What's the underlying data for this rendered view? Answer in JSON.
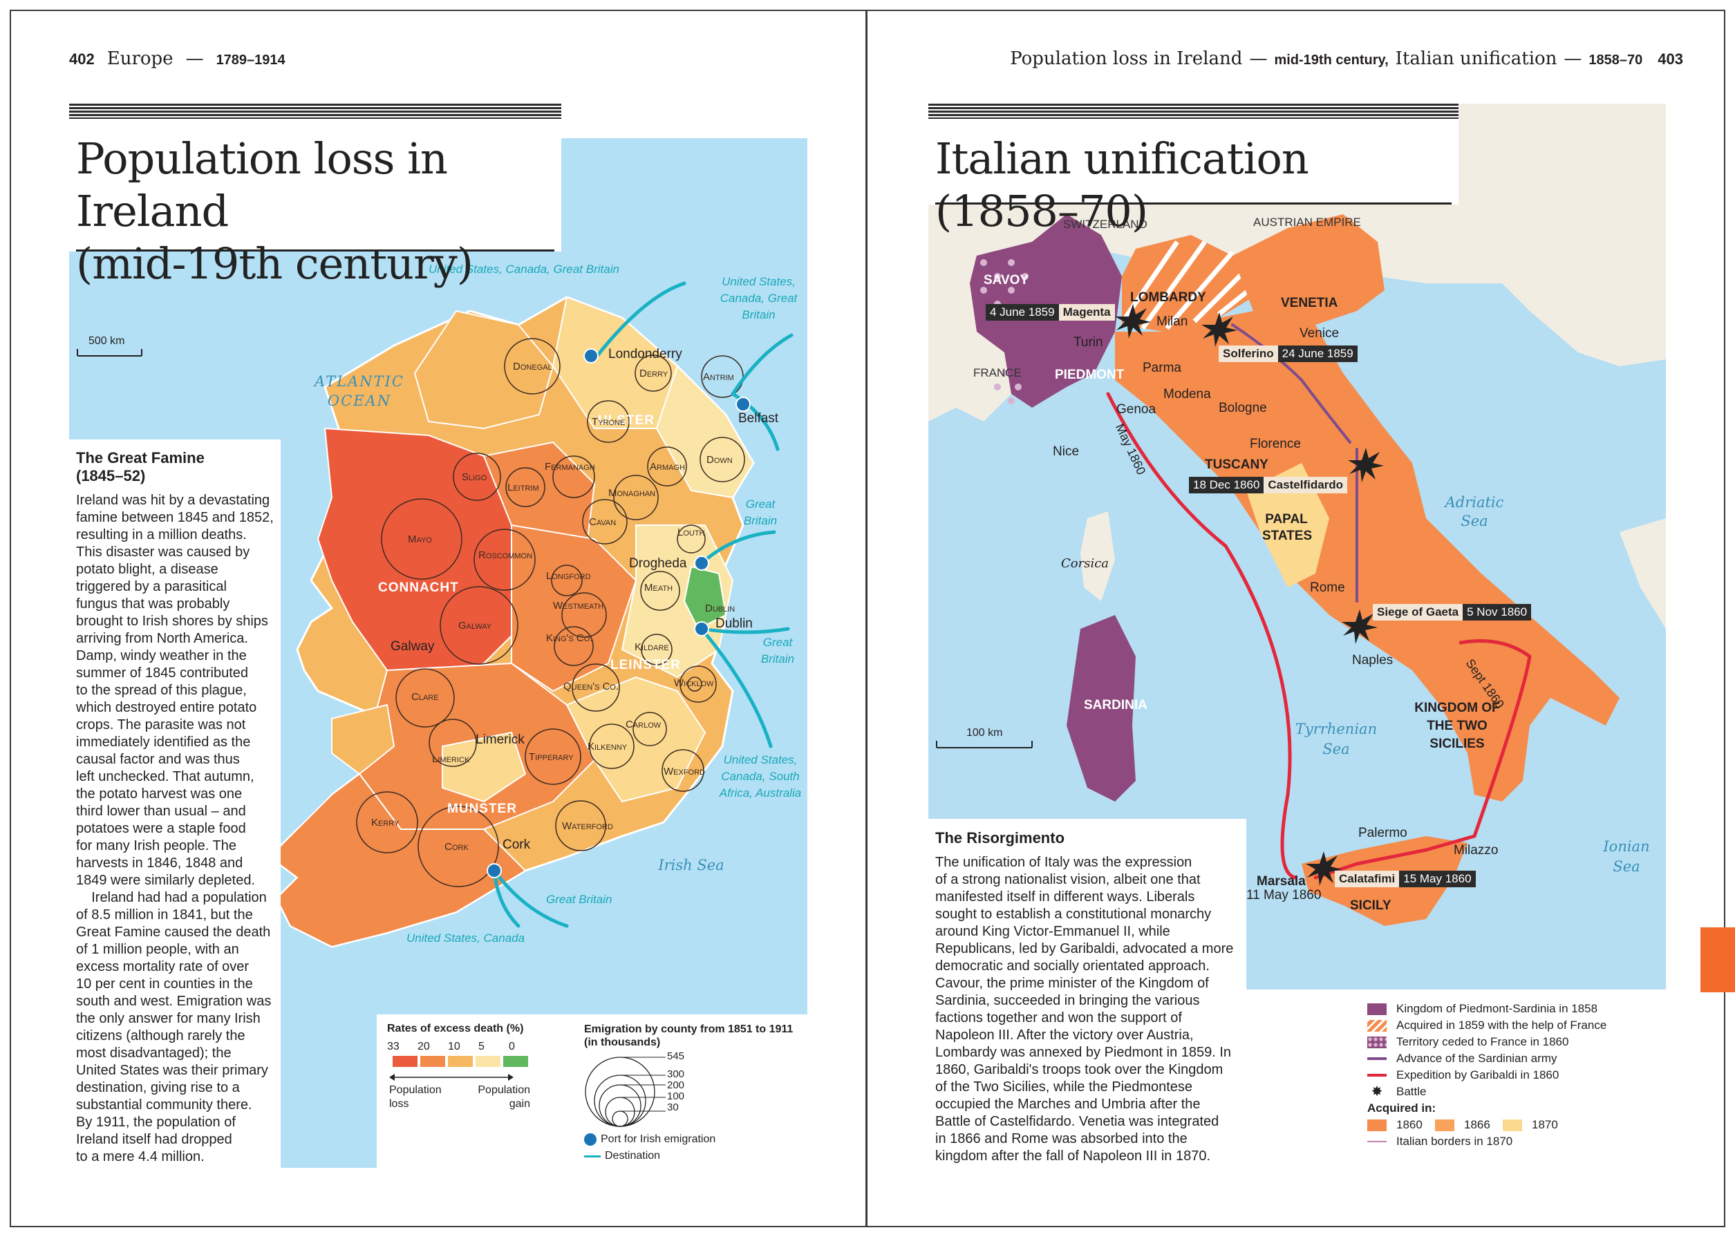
{
  "left_page": {
    "folio": "402",
    "running_head": "Europe",
    "running_head_dates": "1789–1914",
    "title_line1": "Population loss in Ireland",
    "title_line2": "(mid-19th century)",
    "scale": "500 km",
    "atlantic": "ATLANTIC",
    "ocean": "OCEAN",
    "irish_sea": "Irish Sea",
    "provinces": [
      "ULSTER",
      "CONNACHT",
      "LEINSTER",
      "MUNSTER"
    ],
    "counties": [
      "Donegal",
      "Derry",
      "Antrim",
      "Tyrone",
      "Fermanagh",
      "Armagh",
      "Down",
      "Sligo",
      "Leitrim",
      "Monaghan",
      "Cavan",
      "Mayo",
      "Roscommon",
      "Louth",
      "Longford",
      "Meath",
      "Westmeath",
      "Dublin",
      "Galway",
      "King's Co.",
      "Kildare",
      "Wicklow",
      "Queen's Co.",
      "Clare",
      "Carlow",
      "Limerick",
      "Tipperary",
      "Kilkenny",
      "Wexford",
      "Kerry",
      "Cork",
      "Waterford"
    ],
    "towns": {
      "londonderry": "Londonderry",
      "belfast": "Belfast",
      "drogheda": "Drogheda",
      "dublin": "Dublin",
      "galway": "Galway",
      "limerick": "Limerick",
      "cork": "Cork"
    },
    "destinations": {
      "northwest": "United States, Canada, Great Britain",
      "northeast": "United States, Canada, Great Britain",
      "east1": "Great Britain",
      "east2": "Great Britain",
      "southeast": "United States, Canada, South Africa, Australia",
      "south_gb": "Great Britain",
      "south_us": "United States, Canada"
    },
    "famine_head": "The Great Famine (1845–52)",
    "famine_text": [
      "Ireland was hit by a devastating",
      "famine between 1845 and 1852,",
      "resulting in a million deaths.",
      "This disaster was caused by",
      "potato blight, a disease",
      "triggered by a parasitical",
      "fungus that was probably",
      "brought to Irish shores by ships",
      "arriving from North America.",
      "Damp, windy weather in the",
      "summer of 1845 contributed",
      "to the spread of this plague,",
      "which destroyed entire potato",
      "crops. The parasite was not",
      "immediately identified as the",
      "causal factor and was thus",
      "left unchecked. That autumn,",
      "the potato harvest was one",
      "third lower than usual – and",
      "potatoes were a staple food",
      "for many Irish people. The",
      "harvests in 1846, 1848 and",
      "1849 were similarly depleted.",
      "    Ireland had had a population",
      "of 8.5 million in 1841, but the",
      "Great Famine caused the death",
      "of 1 million people, with an",
      "excess mortality rate of over",
      "10 per cent in counties in the",
      "south and west. Emigration was",
      "the only answer for many Irish",
      "citizens (although rarely the",
      "most disadvantaged); the",
      "United States was their primary",
      "destination, giving rise to a",
      "substantial community there.",
      "By 1911, the population of",
      "Ireland itself had dropped",
      "to a mere 4.4 million."
    ],
    "legend_rates_title": "Rates of excess death (%)",
    "legend_rates_values": [
      "33",
      "20",
      "10",
      "5",
      "0"
    ],
    "legend_rates_colors": [
      "#ec5a3c",
      "#f28a4a",
      "#f6b761",
      "#fbe5a6",
      "#62b85f"
    ],
    "legend_pop_loss": "Population loss",
    "legend_pop_gain": "Population gain",
    "legend_emig_title": "Emigration by county from 1851 to 1911 (in thousands)",
    "legend_emig_values": [
      "545",
      "300",
      "200",
      "100",
      "30"
    ],
    "legend_port": "Port for Irish emigration",
    "legend_dest": "Destination"
  },
  "right_page": {
    "folio": "403",
    "running_head": "Population loss in Ireland",
    "running_head_sub1": "mid-19th century,",
    "running_head_mid": "Italian unification",
    "running_head_sub2": "1858–70",
    "title": "Italian unification (1858–70)",
    "countries": {
      "switzerland": "SWITZERLAND",
      "austria": "AUSTRIAN EMPIRE",
      "france": "FRANCE"
    },
    "regions": {
      "savoy": "SAVOY",
      "lombardy": "LOMBARDY",
      "venetia": "VENETIA",
      "piedmont": "PIEDMONT",
      "tuscany": "TUSCANY",
      "papal": "PAPAL STATES",
      "sardinia": "SARDINIA",
      "sicily": "SICILY",
      "two_sicilies": "KINGDOM OF THE TWO SICILIES"
    },
    "cities": {
      "turin": "Turin",
      "milan": "Milan",
      "venice": "Venice",
      "parma": "Parma",
      "modena": "Modena",
      "bologne": "Bologne",
      "genoa": "Genoa",
      "nice": "Nice",
      "florence": "Florence",
      "rome": "Rome",
      "naples": "Naples",
      "palermo": "Palermo",
      "milazzo": "Milazzo",
      "marsala": "Marsala",
      "marsala_date": "11 May 1860"
    },
    "seas": {
      "adriatic1": "Adriatic",
      "adriatic2": "Sea",
      "tyrrhenian1": "Tyrrhenian",
      "tyrrhenian2": "Sea",
      "ionian1": "Ionian",
      "ionian2": "Sea",
      "corsica": "Corsica"
    },
    "route_labels": {
      "may": "May 1860",
      "sept": "Sept 1860"
    },
    "battles": [
      {
        "date": "4 June 1859",
        "place": "Magenta"
      },
      {
        "date": "24 June 1859",
        "place": "Solferino"
      },
      {
        "date": "18 Dec 1860",
        "place": "Castelfidardo"
      },
      {
        "date": "5 Nov 1860",
        "place": "Siege of Gaeta"
      },
      {
        "date": "15 May 1860",
        "place": "Calatafimi"
      }
    ],
    "scale": "100 km",
    "risorg_head": "The Risorgimento",
    "risorg_text": [
      "The unification of Italy was the expression",
      "of a strong nationalist vision, albeit one that",
      "manifested itself in different ways. Liberals",
      "sought to establish a constitutional monarchy",
      "around King Victor-Emmanuel II, while",
      "Republicans, led by Garibaldi, advocated a more",
      "democratic and socially orientated approach.",
      "Cavour, the prime minister of the Kingdom of",
      "Sardinia, succeeded in bringing the various",
      "factions together and won the support of",
      "Napoleon III. After the victory over Austria,",
      "Lombardy was annexed by Piedmont in 1859. In",
      "1860, Garibaldi's troops took over the Kingdom",
      "of the Two Sicilies, while the Piedmontese",
      "occupied the Marches and Umbria after the",
      "Battle of Castelfidardo. Venetia was integrated",
      "in 1866 and Rome was absorbed into the",
      "kingdom after the fall of Napoleon III in 1870."
    ],
    "legend": {
      "piedmont": "Kingdom of Piedmont-Sardinia in 1858",
      "acq1859": "Acquired in 1859 with the help of France",
      "ceded": "Territory ceded to France in 1860",
      "advance": "Advance of the Sardinian army",
      "expedition": "Expedition by Garibaldi in 1860",
      "battle": "Battle",
      "acquired_in": "Acquired in:",
      "y1860": "1860",
      "y1866": "1866",
      "y1870": "1870",
      "borders": "Italian borders in 1870"
    },
    "colors": {
      "piedmont": "#8e4a7e",
      "acquired": "#f58c4c",
      "acquired_light": "#f9b36a",
      "papal": "#fbd98e",
      "sea": "#b5def3",
      "land_foreign": "#f2ede2"
    }
  }
}
